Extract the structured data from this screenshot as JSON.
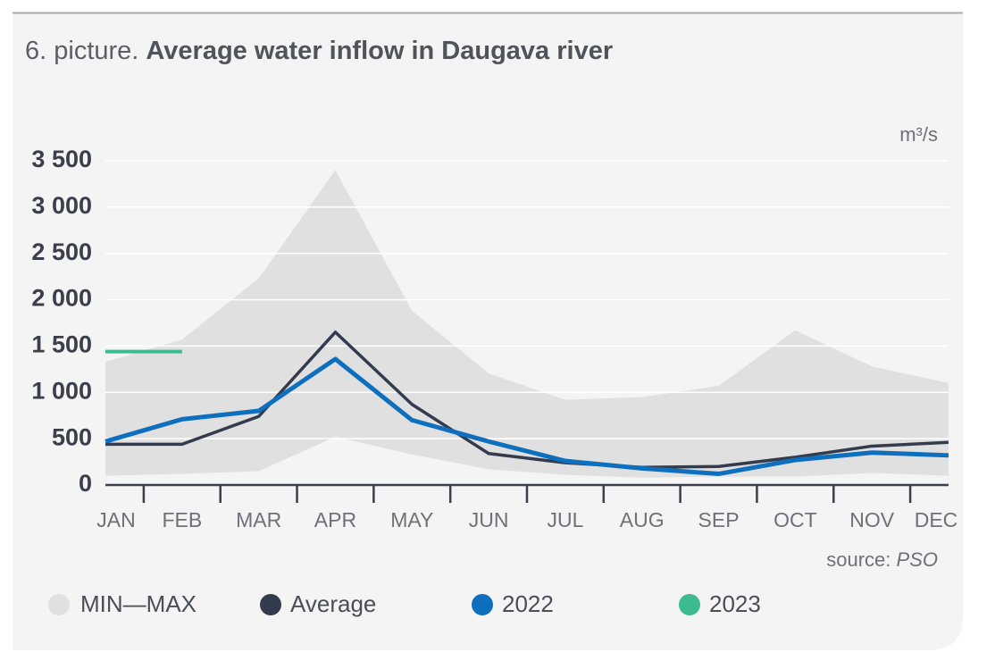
{
  "chart_data": {
    "type": "line",
    "figure_label": "6. picture.",
    "title": "Average water inflow in Daugava river",
    "unit": "m³/s",
    "source_label": "source:",
    "source": "PSO",
    "categories": [
      "JAN",
      "FEB",
      "MAR",
      "APR",
      "MAY",
      "JUN",
      "JUL",
      "AUG",
      "SEP",
      "OCT",
      "NOV",
      "DEC"
    ],
    "band": {
      "name": "MIN—MAX",
      "color": "#e0e0e0",
      "max": [
        1330,
        1570,
        2230,
        3400,
        1880,
        1205,
        920,
        950,
        1070,
        1670,
        1280,
        1100
      ],
      "min": [
        100,
        120,
        150,
        520,
        330,
        170,
        110,
        80,
        90,
        90,
        130,
        100
      ]
    },
    "series": [
      {
        "name": "Average",
        "color": "#333b4d",
        "width": 3.5,
        "values": [
          440,
          440,
          740,
          1650,
          870,
          340,
          240,
          190,
          200,
          300,
          420,
          460
        ]
      },
      {
        "name": "2022",
        "color": "#0f6fbf",
        "width": 5,
        "values": [
          470,
          710,
          800,
          1360,
          700,
          470,
          260,
          180,
          120,
          270,
          350,
          320
        ]
      },
      {
        "name": "2023",
        "color": "#3dbb8f",
        "width": 4,
        "values": [
          1440,
          1440,
          null,
          null,
          null,
          null,
          null,
          null,
          null,
          null,
          null,
          null
        ]
      }
    ],
    "ylim": [
      0,
      3500
    ],
    "yticks": [
      0,
      500,
      {
        "value": 1000,
        "label": "1 000"
      },
      {
        "value": 1500,
        "label": "1 500"
      },
      {
        "value": 2000,
        "label": "2 000"
      },
      {
        "value": 2500,
        "label": "2 500"
      },
      {
        "value": 3000,
        "label": "3 000"
      },
      {
        "value": 3500,
        "label": "3 500"
      }
    ],
    "grid": true
  }
}
